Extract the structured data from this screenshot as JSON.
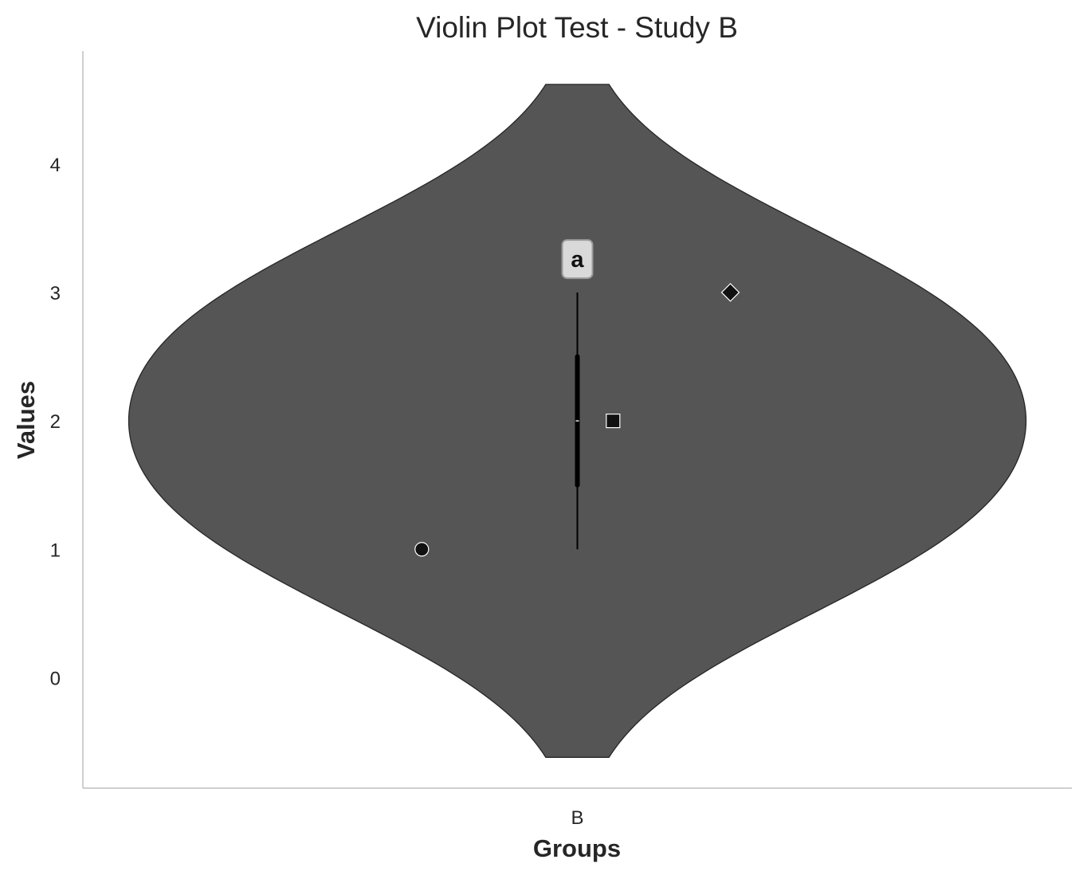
{
  "chart_data": {
    "type": "violin",
    "title": "Violin Plot Test - Study B",
    "xlabel": "Groups",
    "ylabel": "Values",
    "categories": [
      "B"
    ],
    "ylim": [
      -0.86,
      4.88
    ],
    "yticks": [
      0,
      1,
      2,
      3,
      4
    ],
    "grid": false,
    "series": [
      {
        "name": "B",
        "data": [
          1,
          2,
          3
        ],
        "median": 2,
        "q1": 1.5,
        "q3": 2.5,
        "whisker_low": 1,
        "whisker_high": 3,
        "kde_range": [
          -0.62,
          4.62
        ],
        "color": "#555555"
      }
    ],
    "points": [
      {
        "x_offset": -0.305,
        "y": 1,
        "marker": "circle"
      },
      {
        "x_offset": 0.07,
        "y": 2,
        "marker": "square"
      },
      {
        "x_offset": 0.3,
        "y": 3,
        "marker": "diamond"
      }
    ],
    "annotation": {
      "text": "a",
      "y": 3.26
    },
    "colors": {
      "violin_fill": "#555555",
      "violin_edge": "#262626",
      "box": "#000000",
      "axis": "#bfbfbf",
      "text": "#262626"
    }
  }
}
